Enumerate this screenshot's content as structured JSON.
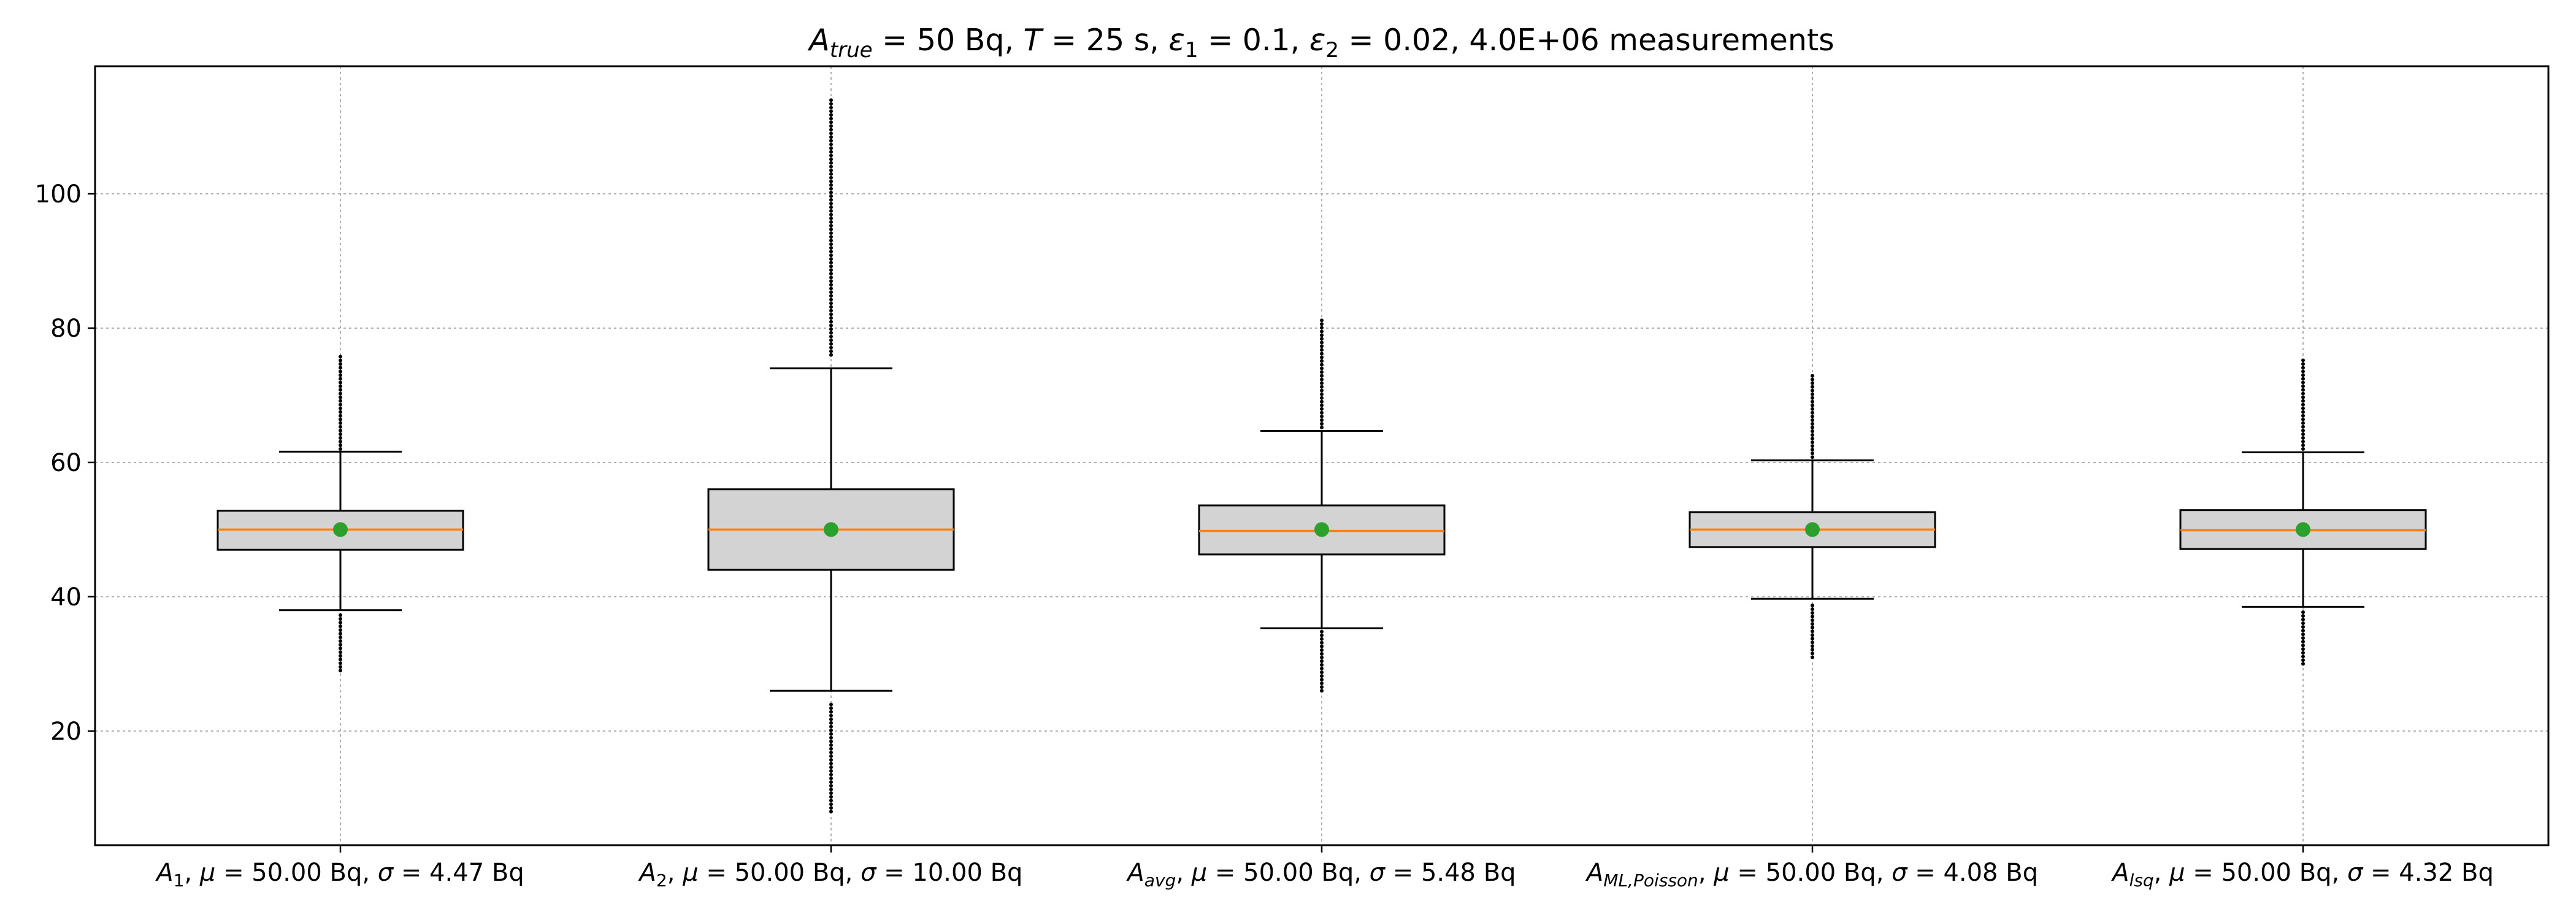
{
  "chart_data": {
    "type": "boxplot",
    "title": {
      "parts": [
        {
          "text": "A",
          "style": "italic"
        },
        {
          "text": "true",
          "style": "italic-sub"
        },
        {
          "text": " = 50 Bq, ",
          "style": "normal"
        },
        {
          "text": "T",
          "style": "italic"
        },
        {
          "text": " = 25 s, ",
          "style": "normal"
        },
        {
          "text": "ε",
          "style": "italic"
        },
        {
          "text": "1",
          "style": "sub"
        },
        {
          "text": " = 0.1, ",
          "style": "normal"
        },
        {
          "text": "ε",
          "style": "italic"
        },
        {
          "text": "2",
          "style": "sub"
        },
        {
          "text": " = 0.02, 4.0E+06 measurements",
          "style": "normal"
        }
      ]
    },
    "y_ticks": [
      20,
      40,
      60,
      80,
      100
    ],
    "ylim": [
      3,
      119
    ],
    "grid": true,
    "colors": {
      "box_fill": "#d3d3d3",
      "median": "#ff7f0e",
      "mean_marker": "#2ca02c",
      "outlier": "#000000",
      "grid": "#b0b0b0"
    },
    "boxes": [
      {
        "label_parts": [
          {
            "text": "A",
            "style": "italic"
          },
          {
            "text": "1",
            "style": "sub"
          },
          {
            "text": ", ",
            "style": "normal"
          },
          {
            "text": "μ",
            "style": "italic"
          },
          {
            "text": " = 50.00 Bq, ",
            "style": "normal"
          },
          {
            "text": "σ",
            "style": "italic"
          },
          {
            "text": " = 4.47 Bq",
            "style": "normal"
          }
        ],
        "whisker_low": 38.0,
        "q1": 47.0,
        "median": 50.0,
        "q3": 52.8,
        "whisker_high": 61.6,
        "mean": 50.0,
        "outliers_low": [
          29.0,
          37.5
        ],
        "outliers_high": [
          62.0,
          76.0
        ]
      },
      {
        "label_parts": [
          {
            "text": "A",
            "style": "italic"
          },
          {
            "text": "2",
            "style": "sub"
          },
          {
            "text": ", ",
            "style": "normal"
          },
          {
            "text": "μ",
            "style": "italic"
          },
          {
            "text": " = 50.00 Bq, ",
            "style": "normal"
          },
          {
            "text": "σ",
            "style": "italic"
          },
          {
            "text": " = 10.00 Bq",
            "style": "normal"
          }
        ],
        "whisker_low": 26.0,
        "q1": 44.0,
        "median": 50.0,
        "q3": 56.0,
        "whisker_high": 74.0,
        "mean": 50.0,
        "outliers_low": [
          8.0,
          24.0
        ],
        "outliers_high": [
          76.0,
          114.0
        ]
      },
      {
        "label_parts": [
          {
            "text": "A",
            "style": "italic"
          },
          {
            "text": "avg",
            "style": "italic-sub"
          },
          {
            "text": ", ",
            "style": "normal"
          },
          {
            "text": "μ",
            "style": "italic"
          },
          {
            "text": " = 50.00 Bq, ",
            "style": "normal"
          },
          {
            "text": "σ",
            "style": "italic"
          },
          {
            "text": " = 5.48 Bq",
            "style": "normal"
          }
        ],
        "whisker_low": 35.3,
        "q1": 46.3,
        "median": 49.8,
        "q3": 53.6,
        "whisker_high": 64.7,
        "mean": 50.0,
        "outliers_low": [
          26.0,
          34.8
        ],
        "outliers_high": [
          65.2,
          81.5
        ]
      },
      {
        "label_parts": [
          {
            "text": "A",
            "style": "italic"
          },
          {
            "text": "ML,Poisson",
            "style": "italic-sub"
          },
          {
            "text": ", ",
            "style": "normal"
          },
          {
            "text": "μ",
            "style": "italic"
          },
          {
            "text": " = 50.00 Bq, ",
            "style": "normal"
          },
          {
            "text": "σ",
            "style": "italic"
          },
          {
            "text": " = 4.08 Bq",
            "style": "normal"
          }
        ],
        "whisker_low": 39.7,
        "q1": 47.4,
        "median": 50.0,
        "q3": 52.6,
        "whisker_high": 60.3,
        "mean": 50.0,
        "outliers_low": [
          31.0,
          39.2
        ],
        "outliers_high": [
          60.8,
          73.0
        ]
      },
      {
        "label_parts": [
          {
            "text": "A",
            "style": "italic"
          },
          {
            "text": "lsq",
            "style": "italic-sub"
          },
          {
            "text": ", ",
            "style": "normal"
          },
          {
            "text": "μ",
            "style": "italic"
          },
          {
            "text": " = 50.00 Bq, ",
            "style": "normal"
          },
          {
            "text": "σ",
            "style": "italic"
          },
          {
            "text": " = 4.32 Bq",
            "style": "normal"
          }
        ],
        "whisker_low": 38.5,
        "q1": 47.1,
        "median": 49.9,
        "q3": 52.9,
        "whisker_high": 61.5,
        "mean": 50.0,
        "outliers_low": [
          30.0,
          38.0
        ],
        "outliers_high": [
          62.0,
          75.5
        ]
      }
    ]
  }
}
